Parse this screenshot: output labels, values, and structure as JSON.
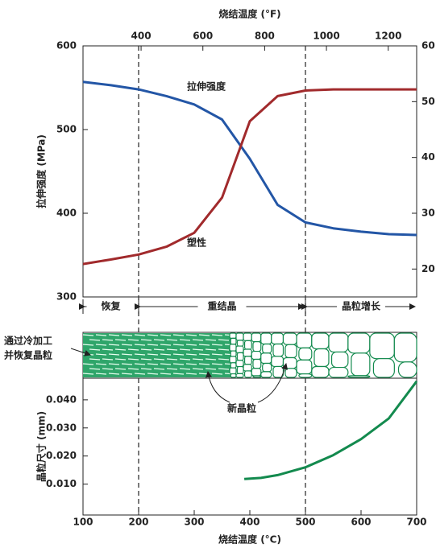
{
  "chart_data": [
    {
      "type": "line",
      "x2label": "烧结温度 (°F)",
      "ylabel": "拉伸强度 (MPa)",
      "xlim": [
        100,
        700
      ],
      "x2lim": [
        212,
        1292
      ],
      "x2ticks": [
        400,
        600,
        800,
        1000,
        1200
      ],
      "ylim": [
        300,
        600
      ],
      "yticks": [
        300,
        400,
        500,
        600
      ],
      "y2lim": [
        15,
        60
      ],
      "y2ticks": [
        20,
        30,
        40,
        50,
        60
      ],
      "x": [
        100,
        150,
        200,
        250,
        300,
        350,
        400,
        450,
        500,
        550,
        600,
        650,
        700
      ],
      "series": [
        {
          "name": "拉伸强度",
          "color": "#2356a6",
          "values": [
            557,
            553,
            548,
            540,
            530,
            512,
            465,
            410,
            389,
            382,
            378,
            375,
            374
          ]
        },
        {
          "name": "塑性",
          "color": "#a12a2c",
          "axis": "y2",
          "values": [
            20.9,
            21.7,
            22.6,
            24,
            26.5,
            32.8,
            46.5,
            51,
            52,
            52.2,
            52.2,
            52.2,
            52.2
          ]
        }
      ],
      "vlines": [
        200,
        500
      ],
      "regions": [
        {
          "label": "恢复",
          "range": [
            100,
            200
          ]
        },
        {
          "label": "重结晶",
          "range": [
            200,
            500
          ]
        },
        {
          "label": "晶粒增长",
          "range": [
            500,
            700
          ]
        }
      ]
    },
    {
      "type": "line",
      "xlabel": "烧结温度 (°C)",
      "ylabel": "晶粒尺寸 (mm)",
      "xlim": [
        100,
        700
      ],
      "xticks": [
        100,
        200,
        300,
        400,
        500,
        600,
        700
      ],
      "ylim": [
        -0.001,
        0.0477
      ],
      "yticks": [
        {
          "value": 0.01,
          "label": "0.010"
        },
        {
          "value": 0.02,
          "label": "0.020"
        },
        {
          "value": 0.03,
          "label": "0.030"
        },
        {
          "value": 0.04,
          "label": "0.040"
        }
      ],
      "x": [
        390,
        420,
        450,
        500,
        550,
        600,
        650,
        700
      ],
      "series": [
        {
          "color": "#138a4e",
          "values": [
            0.0118,
            0.0122,
            0.0132,
            0.016,
            0.0203,
            0.026,
            0.0334,
            0.0466
          ]
        }
      ],
      "vlines": [
        200,
        500
      ]
    }
  ],
  "microstructure": {
    "labels": [
      "通过冷加工",
      "并恢复晶粒"
    ],
    "new_grains": "新晶粒"
  }
}
